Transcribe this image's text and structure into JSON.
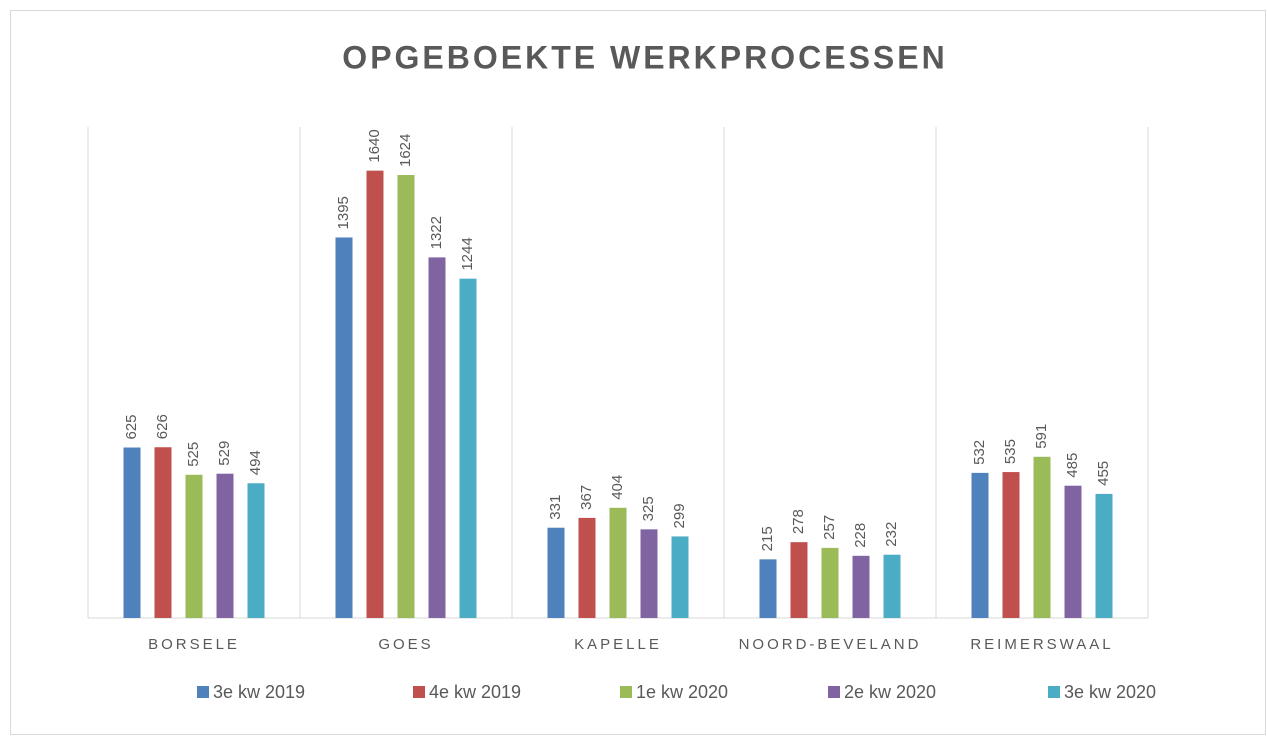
{
  "chart_data": {
    "type": "bar",
    "title": "OPGEBOEKTE WERKPROCESSEN",
    "categories": [
      "BORSELE",
      "GOES",
      "KAPELLE",
      "NOORD-BEVELAND",
      "REIMERSWAAL"
    ],
    "series": [
      {
        "name": "3e kw 2019",
        "color": "#4f81bd",
        "values": [
          625,
          1395,
          331,
          215,
          532
        ]
      },
      {
        "name": "4e kw 2019",
        "color": "#c0504d",
        "values": [
          626,
          1640,
          367,
          278,
          535
        ]
      },
      {
        "name": "1e kw 2020",
        "color": "#9bbb59",
        "values": [
          525,
          1624,
          404,
          257,
          591
        ]
      },
      {
        "name": "2e kw 2020",
        "color": "#8064a2",
        "values": [
          529,
          1322,
          325,
          228,
          485
        ]
      },
      {
        "name": "3e kw 2020",
        "color": "#4bacc6",
        "values": [
          494,
          1244,
          299,
          232,
          455
        ]
      }
    ],
    "ylim": [
      0,
      1800
    ],
    "legend": "bottom"
  }
}
